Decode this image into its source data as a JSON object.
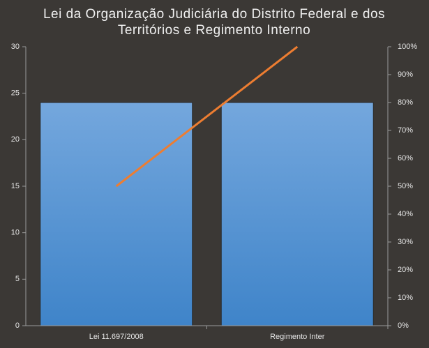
{
  "chart_data": {
    "type": "pareto",
    "title": [
      "Lei da Organização Judiciária do Distrito Federal e dos",
      "Territórios e Regimento Interno"
    ],
    "categories": [
      "Lei 11.697/2008",
      "Regimento Inter"
    ],
    "series": [
      {
        "type": "bar",
        "color": "#5b9bd5",
        "values": [
          24,
          24
        ]
      },
      {
        "type": "line",
        "axis": "y2",
        "color": "#ed7d31",
        "values": [
          50,
          100
        ]
      }
    ],
    "ylim": [
      0,
      30
    ],
    "yticks": [
      0,
      5,
      10,
      15,
      20,
      25,
      30
    ],
    "y2lim": [
      0,
      100
    ],
    "y2ticks": [
      {
        "value": 0,
        "label": "0%"
      },
      {
        "value": 10,
        "label": "10%"
      },
      {
        "value": 20,
        "label": "20%"
      },
      {
        "value": 30,
        "label": "30%"
      },
      {
        "value": 40,
        "label": "40%"
      },
      {
        "value": 50,
        "label": "50%"
      },
      {
        "value": 60,
        "label": "60%"
      },
      {
        "value": 70,
        "label": "70%"
      },
      {
        "value": 80,
        "label": "80%"
      },
      {
        "value": 90,
        "label": "90%"
      },
      {
        "value": 100,
        "label": "100%"
      }
    ]
  }
}
